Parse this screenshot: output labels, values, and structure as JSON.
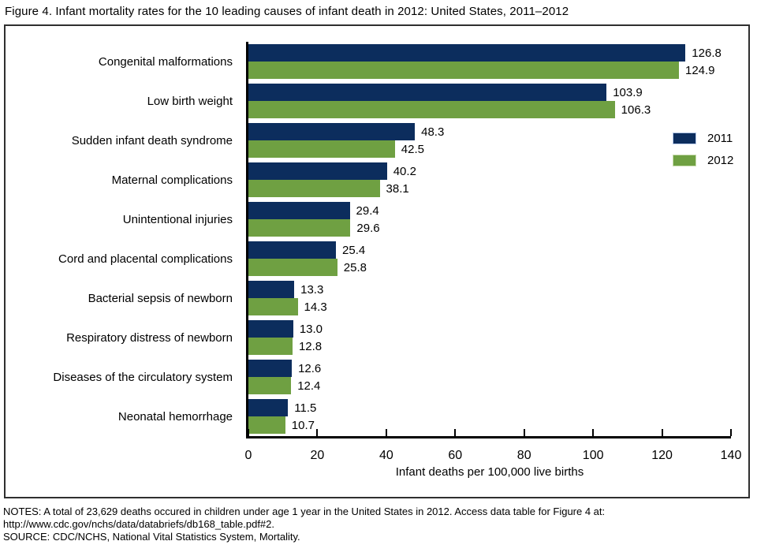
{
  "page": {
    "title": "Figure 4. Infant mortality rates for the 10 leading causes of infant death in 2012: United States, 2011–2012"
  },
  "chart_data": {
    "type": "bar",
    "orientation": "horizontal",
    "title": "Figure 4. Infant mortality rates for the 10 leading causes of infant death in 2012: United States, 2011–2012",
    "categories": [
      "Congenital malformations",
      "Low birth weight",
      "Sudden infant death syndrome",
      "Maternal complications",
      "Unintentional injuries",
      "Cord and placental complications",
      "Bacterial sepsis of newborn",
      "Respiratory distress of newborn",
      "Diseases of the circulatory system",
      "Neonatal hemorrhage"
    ],
    "series": [
      {
        "name": "2011",
        "color": "#0c2d5d",
        "swatch_border": "#b4c7e7",
        "values": [
          126.8,
          103.9,
          48.3,
          40.2,
          29.4,
          25.4,
          13.3,
          13.0,
          12.6,
          11.5
        ]
      },
      {
        "name": "2012",
        "color": "#6fa042",
        "swatch_border": "#c9ddb0",
        "values": [
          124.9,
          106.3,
          42.5,
          38.1,
          29.6,
          25.8,
          14.3,
          12.8,
          12.4,
          10.7
        ]
      }
    ],
    "xlabel": "Infant deaths per 100,000 live births",
    "ylabel": "",
    "xlim": [
      0,
      140
    ],
    "xticks": [
      0,
      20,
      40,
      60,
      80,
      100,
      120,
      140
    ],
    "value_labels": true,
    "grid": false,
    "legend_position": "middle-right"
  },
  "notes": {
    "line1": "NOTES: A total of 23,629 deaths occured in children under age 1 year in the United States in 2012. Access data table for Figure 4 at:",
    "line2": "http://www.cdc.gov/nchs/data/databriefs/db168_table.pdf#2.",
    "line3": "SOURCE: CDC/NCHS, National Vital Statistics System, Mortality."
  }
}
